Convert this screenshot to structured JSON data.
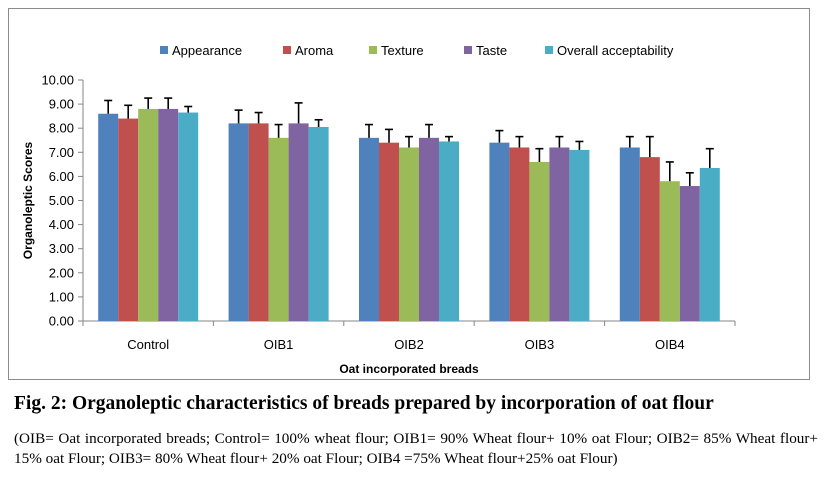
{
  "chart_data": {
    "type": "bar",
    "categories": [
      "Control",
      "OIB1",
      "OIB2",
      "OIB3",
      "OIB4"
    ],
    "series": [
      {
        "name": "Appearance",
        "color": "#4f81bd",
        "values": [
          8.6,
          8.2,
          7.6,
          7.4,
          7.2
        ],
        "errors": [
          0.55,
          0.55,
          0.55,
          0.5,
          0.45
        ]
      },
      {
        "name": "Aroma",
        "color": "#c0504d",
        "values": [
          8.4,
          8.2,
          7.4,
          7.2,
          6.8
        ],
        "errors": [
          0.55,
          0.45,
          0.55,
          0.45,
          0.85
        ]
      },
      {
        "name": "Texture",
        "color": "#9bbb59",
        "values": [
          8.8,
          7.6,
          7.2,
          6.6,
          5.8
        ],
        "errors": [
          0.45,
          0.55,
          0.45,
          0.55,
          0.8
        ]
      },
      {
        "name": "Taste",
        "color": "#8064a2",
        "values": [
          8.8,
          8.2,
          7.6,
          7.2,
          5.6
        ],
        "errors": [
          0.45,
          0.85,
          0.55,
          0.45,
          0.55
        ]
      },
      {
        "name": "Overall acceptability",
        "color": "#4bacc6",
        "values": [
          8.65,
          8.05,
          7.45,
          7.1,
          6.35
        ],
        "errors": [
          0.25,
          0.3,
          0.2,
          0.35,
          0.8
        ]
      }
    ],
    "ylim": [
      0,
      10
    ],
    "ytick_step": 1,
    "ytick_labels": [
      "0.00",
      "1.00",
      "2.00",
      "3.00",
      "4.00",
      "5.00",
      "6.00",
      "7.00",
      "8.00",
      "9.00",
      "10.00"
    ],
    "xlabel": "Oat incorporated breads",
    "ylabel": "Organoleptic Scores",
    "legend_position": "top",
    "grid": false
  },
  "caption": {
    "title": "Fig. 2: Organoleptic characteristics of breads prepared by incorporation of oat flour",
    "note": "(OIB= Oat incorporated breads; Control= 100% wheat flour; OIB1= 90% Wheat flour+ 10% oat Flour; OIB2= 85% Wheat flour+ 15% oat Flour; OIB3= 80% Wheat flour+ 20% oat Flour; OIB4 =75% Wheat flour+25% oat Flour)"
  }
}
